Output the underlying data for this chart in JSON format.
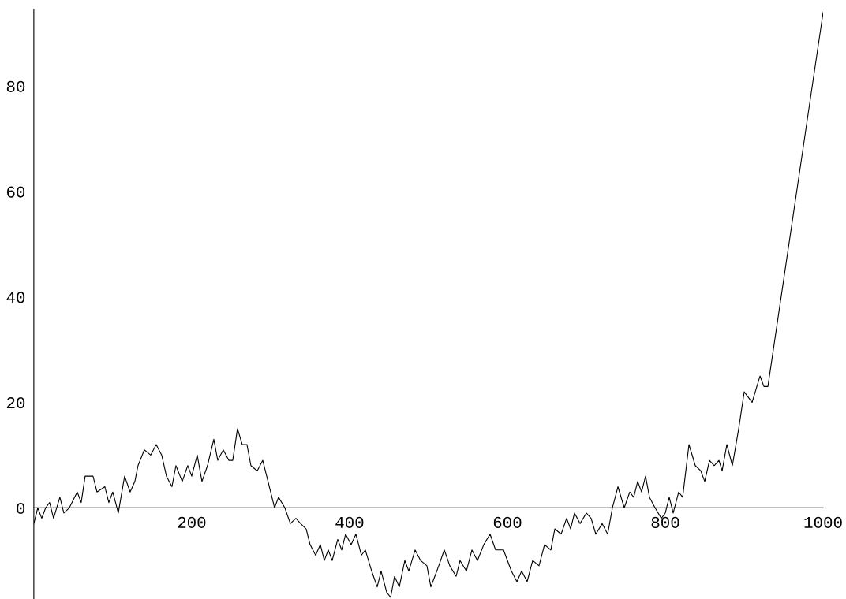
{
  "chart_data": {
    "type": "line",
    "series": [
      {
        "color": "#000000",
        "x": [
          0,
          5,
          10,
          15,
          20,
          25,
          33,
          38,
          45,
          55,
          60,
          65,
          75,
          80,
          90,
          95,
          100,
          107,
          115,
          122,
          128,
          132,
          140,
          148,
          155,
          162,
          168,
          175,
          180,
          188,
          195,
          200,
          207,
          213,
          220,
          228,
          233,
          240,
          247,
          252,
          258,
          264,
          270,
          275,
          283,
          290,
          300,
          305,
          310,
          318,
          325,
          332,
          338,
          345,
          350,
          357,
          363,
          368,
          373,
          378,
          385,
          390,
          395,
          402,
          408,
          415,
          420,
          428,
          435,
          440,
          447,
          452,
          457,
          463,
          470,
          475,
          483,
          490,
          498,
          503,
          508,
          513,
          520,
          527,
          535,
          540,
          548,
          555,
          562,
          570,
          578,
          585,
          595,
          605,
          612,
          618,
          625,
          632,
          640,
          647,
          655,
          660,
          668,
          675,
          680,
          685,
          692,
          700,
          706,
          712,
          720,
          727,
          733,
          740,
          748,
          755,
          760,
          765,
          770,
          775,
          780,
          787,
          795,
          800,
          805,
          810,
          817,
          822,
          830,
          838,
          845,
          850,
          856,
          862,
          868,
          872,
          878,
          885,
          893,
          900,
          905,
          910,
          916,
          920,
          925,
          930,
          1000
        ],
        "values": [
          -3,
          0,
          -2,
          0,
          1,
          -2,
          2,
          -1,
          0,
          3,
          1,
          6,
          6,
          3,
          4,
          1,
          3,
          -1,
          6,
          3,
          5,
          8,
          11,
          10,
          12,
          10,
          6,
          4,
          8,
          5,
          8,
          6,
          10,
          5,
          8,
          13,
          9,
          11,
          9,
          9,
          15,
          12,
          12,
          8,
          7,
          9,
          3,
          0,
          2,
          0,
          -3,
          -2,
          -3,
          -4,
          -7,
          -9,
          -7,
          -10,
          -8,
          -10,
          -6,
          -8,
          -5,
          -7,
          -5,
          -9,
          -8,
          -12,
          -15,
          -12,
          -16,
          -17,
          -13,
          -15,
          -10,
          -12,
          -8,
          -10,
          -11,
          -15,
          -13,
          -11,
          -8,
          -11,
          -13,
          -10,
          -12,
          -8,
          -10,
          -7,
          -5,
          -8,
          -8,
          -12,
          -14,
          -12,
          -14,
          -10,
          -11,
          -7,
          -8,
          -4,
          -5,
          -2,
          -4,
          -1,
          -3,
          -1,
          -2,
          -5,
          -3,
          -5,
          0,
          4,
          0,
          3,
          2,
          5,
          3,
          6,
          2,
          0,
          -2,
          -1,
          2,
          -1,
          3,
          2,
          12,
          8,
          7,
          5,
          9,
          8,
          9,
          7,
          12,
          8,
          15,
          22,
          21,
          20,
          23,
          25,
          23,
          23,
          94
        ]
      }
    ],
    "xlim": [
      0,
      1000
    ],
    "ylim": [
      -17.3,
      94.5
    ],
    "xticks": [
      200,
      400,
      600,
      800,
      1000
    ],
    "yticks": [
      0,
      20,
      40,
      60,
      80
    ],
    "grid": false,
    "legend": false
  }
}
